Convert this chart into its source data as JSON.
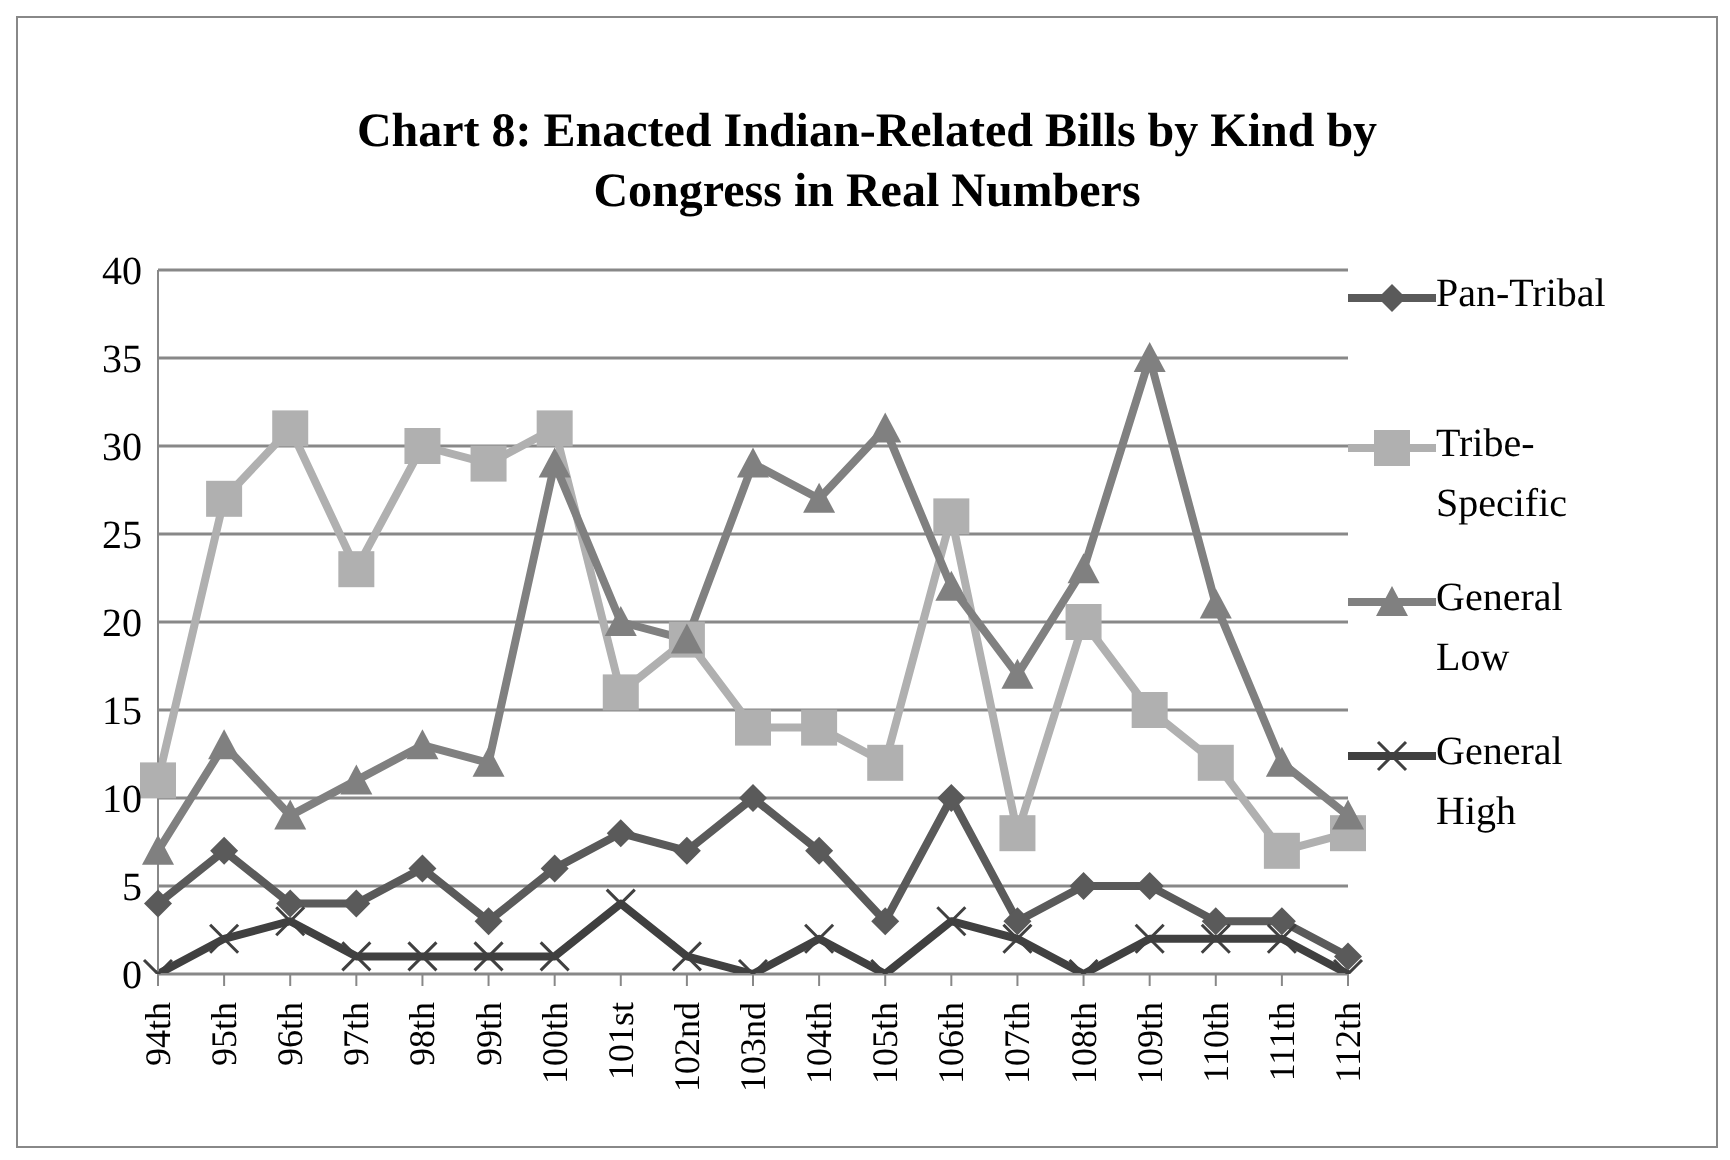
{
  "chart_data": {
    "type": "line",
    "title": "Chart 8: Enacted Indian-Related Bills by Kind by Congress in Real Numbers",
    "categories": [
      "94th",
      "95th",
      "96th",
      "97th",
      "98th",
      "99th",
      "100th",
      "101st",
      "102nd",
      "103nd",
      "104th",
      "105th",
      "106th",
      "107th",
      "108th",
      "109th",
      "110th",
      "111th",
      "112th"
    ],
    "series": [
      {
        "name": "Pan-Tribal",
        "color": "#5a5a5a",
        "marker": "diamond",
        "values": [
          4,
          7,
          4,
          4,
          6,
          3,
          6,
          8,
          7,
          10,
          7,
          3,
          10,
          3,
          5,
          5,
          3,
          3,
          1
        ]
      },
      {
        "name": "Tribe-Specific",
        "color": "#b0b0b0",
        "marker": "square",
        "values": [
          11,
          27,
          31,
          23,
          30,
          29,
          31,
          16,
          19,
          14,
          14,
          12,
          26,
          8,
          20,
          15,
          12,
          7,
          8
        ]
      },
      {
        "name": "General Low",
        "color": "#808080",
        "marker": "triangle",
        "values": [
          7,
          13,
          9,
          11,
          13,
          12,
          29,
          20,
          19,
          29,
          27,
          31,
          22,
          17,
          23,
          35,
          21,
          12,
          9
        ]
      },
      {
        "name": "General High",
        "color": "#404040",
        "marker": "cross",
        "values": [
          0,
          2,
          3,
          1,
          1,
          1,
          1,
          4,
          1,
          0,
          2,
          0,
          3,
          2,
          0,
          2,
          2,
          2,
          0
        ]
      }
    ],
    "ylim": [
      0,
      40
    ],
    "yticks": [
      0,
      5,
      10,
      15,
      20,
      25,
      30,
      35,
      40
    ],
    "grid": "y",
    "legend": "right"
  }
}
